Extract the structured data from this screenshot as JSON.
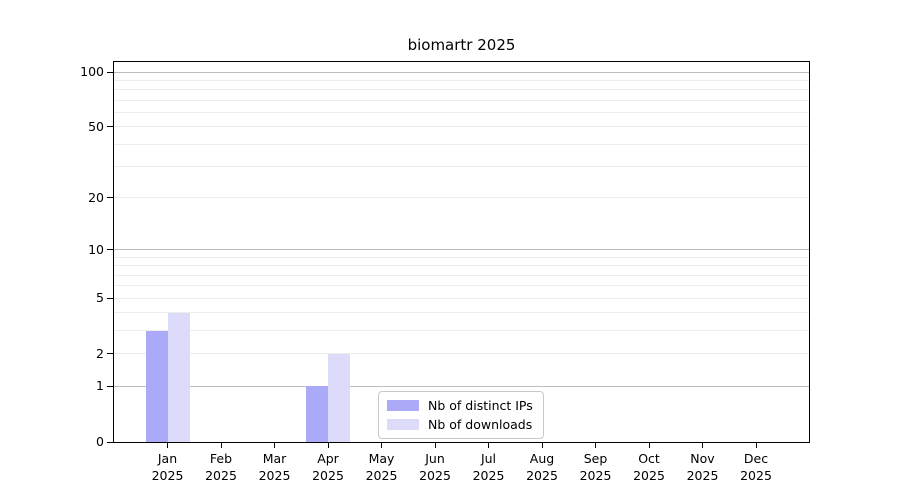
{
  "chart_data": {
    "type": "bar",
    "title": "biomartr 2025",
    "categories": [
      "Jan",
      "Feb",
      "Mar",
      "Apr",
      "May",
      "Jun",
      "Jul",
      "Aug",
      "Sep",
      "Oct",
      "Nov",
      "Dec"
    ],
    "year_label": "2025",
    "series": [
      {
        "name": "Nb of distinct IPs",
        "color": "#aaaaf8",
        "values": [
          3,
          0,
          0,
          1,
          0,
          0,
          0,
          0,
          0,
          0,
          0,
          0
        ]
      },
      {
        "name": "Nb of downloads",
        "color": "#dcdcfa",
        "values": [
          4,
          0,
          0,
          2,
          0,
          0,
          0,
          0,
          0,
          0,
          0,
          0
        ]
      }
    ],
    "xlabel": "",
    "ylabel": "",
    "scale": "log1p",
    "ylim": [
      0,
      113
    ],
    "yticks": [
      0,
      1,
      2,
      5,
      10,
      20,
      50,
      100
    ],
    "grid": {
      "on": true,
      "major_values": [
        1,
        10,
        100
      ],
      "minor_values": [
        2,
        3,
        4,
        5,
        6,
        7,
        8,
        9,
        20,
        30,
        40,
        50,
        60,
        70,
        80,
        90
      ],
      "major_color": "#bdbdbd",
      "minor_color": "#ededed"
    },
    "legend": {
      "position": "bottom-center-inside",
      "entries": [
        "Nb of distinct IPs",
        "Nb of downloads"
      ]
    },
    "colors": {
      "axis": "#000000",
      "background": "#ffffff"
    }
  }
}
